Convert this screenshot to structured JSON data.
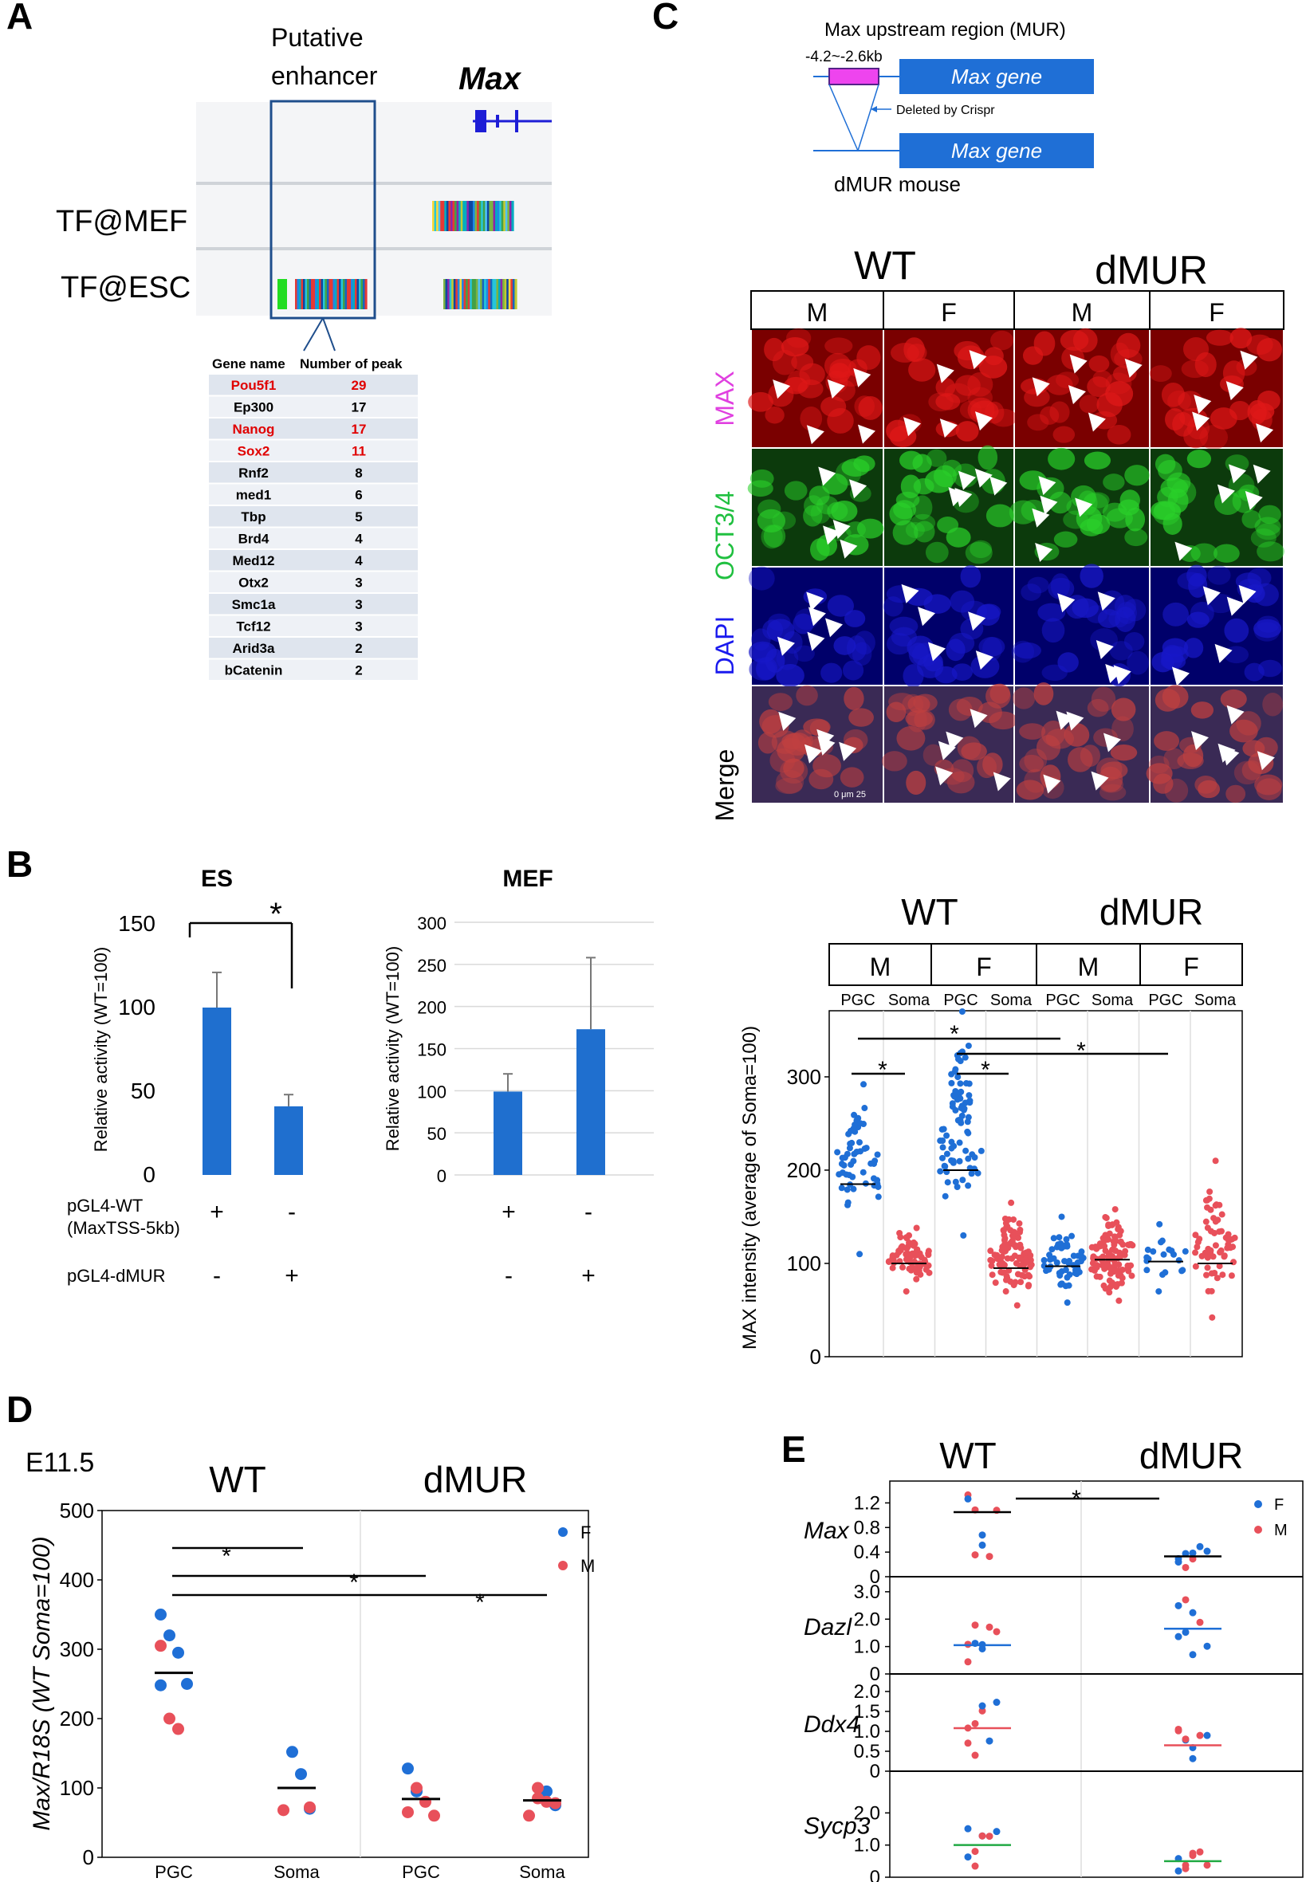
{
  "panels": {
    "A": {
      "letter": "A",
      "enhancer_label_line1": "Putative",
      "enhancer_label_line2": "enhancer",
      "gene_label": "Max",
      "track_labels": [
        "TF@MEF",
        "TF@ESC"
      ],
      "table_headers": [
        "Gene name",
        "Number of peak"
      ],
      "table_rows": [
        {
          "gene": "Pou5f1",
          "peaks": "29",
          "highlight": true
        },
        {
          "gene": "Ep300",
          "peaks": "17",
          "highlight": false
        },
        {
          "gene": "Nanog",
          "peaks": "17",
          "highlight": true
        },
        {
          "gene": "Sox2",
          "peaks": "11",
          "highlight": true
        },
        {
          "gene": "Rnf2",
          "peaks": "8",
          "highlight": false
        },
        {
          "gene": "med1",
          "peaks": "6",
          "highlight": false
        },
        {
          "gene": "Tbp",
          "peaks": "5",
          "highlight": false
        },
        {
          "gene": "Brd4",
          "peaks": "4",
          "highlight": false
        },
        {
          "gene": "Med12",
          "peaks": "4",
          "highlight": false
        },
        {
          "gene": "Otx2",
          "peaks": "3",
          "highlight": false
        },
        {
          "gene": "Smc1a",
          "peaks": "3",
          "highlight": false
        },
        {
          "gene": "Tcf12",
          "peaks": "3",
          "highlight": false
        },
        {
          "gene": "Arid3a",
          "peaks": "2",
          "highlight": false
        },
        {
          "gene": "bCatenin",
          "peaks": "2",
          "highlight": false
        }
      ],
      "highlight_color": "#e00000"
    },
    "B": {
      "letter": "B",
      "charts_titles": [
        "ES",
        "MEF"
      ],
      "ylabel": "Relative activity (WT=100)",
      "row_labels": [
        "pGL4-WT",
        "(MaxTSS-5kb)",
        "pGL4-dMUR"
      ],
      "signs_es": [
        [
          "+",
          "-"
        ],
        [
          "-",
          "+"
        ]
      ],
      "signs_mef": [
        [
          "+",
          "-"
        ],
        [
          "-",
          "+"
        ]
      ],
      "sig_mark": "*",
      "bar_color": "#1f6fcf"
    },
    "C": {
      "letter": "C",
      "diagram_title": "Max upstream region (MUR)",
      "region_range": "-4.2~-2.6kb",
      "gene_box_label": "Max   gene",
      "deleted_label": "Deleted by Crispr",
      "mouse_label": "dMUR mouse",
      "group_labels": [
        "WT",
        "dMUR"
      ],
      "sex_labels": [
        "M",
        "F",
        "M",
        "F"
      ],
      "channel_labels": [
        "MAX",
        "OCT3/4",
        "DAPI",
        "Merge"
      ],
      "channel_colors": [
        "#e040e0",
        "#20c040",
        "#1a1aee",
        "#000000"
      ],
      "scale_text": "0    μm    25"
    },
    "C2": {
      "group_labels": [
        "WT",
        "dMUR"
      ],
      "sex_labels": [
        "M",
        "F",
        "M",
        "F"
      ],
      "cell_labels": [
        "PGC",
        "Soma",
        "PGC",
        "Soma",
        "PGC",
        "Soma",
        "PGC",
        "Soma"
      ],
      "ylabel": "MAX intensity (average of Soma=100)",
      "sig_mark": "*"
    },
    "D": {
      "letter": "D",
      "stage": "E11.5",
      "group_labels": [
        "WT",
        "dMUR"
      ],
      "ylabel": "Max/R18S (WT Soma=100)",
      "legend": [
        "F",
        "M"
      ],
      "sig_mark": "*"
    },
    "E": {
      "letter": "E",
      "group_labels": [
        "WT",
        "dMUR"
      ],
      "legend": [
        "F",
        "M"
      ],
      "gene_labels": [
        "Max",
        "Dazl",
        "Ddx4",
        "Sycp3"
      ],
      "sig_mark": "*"
    }
  },
  "colors": {
    "blue": "#1f6fd6",
    "red": "#e8505a",
    "line_blue": "#1f6fd6",
    "line_red": "#e8505a",
    "line_green": "#22aa44"
  },
  "chart_data": [
    {
      "type": "bar",
      "title": "ES",
      "categories": [
        "pGL4-WT (MaxTSS-5kb)",
        "pGL4-dMUR"
      ],
      "values": [
        100,
        41
      ],
      "errors": [
        21,
        7
      ],
      "ylabel": "Relative activity (WT=100)",
      "ylim": [
        0,
        150
      ],
      "yticks": [
        "0",
        "50",
        "100",
        "150"
      ]
    },
    {
      "type": "bar",
      "title": "MEF",
      "categories": [
        "pGL4-WT (MaxTSS-5kb)",
        "pGL4-dMUR"
      ],
      "values": [
        99,
        173
      ],
      "errors": [
        21,
        85
      ],
      "ylabel": "Relative activity (WT=100)",
      "ylim": [
        0,
        300
      ],
      "yticks": [
        "0",
        "50",
        "100",
        "150",
        "200",
        "250",
        "300"
      ]
    },
    {
      "type": "scatter",
      "ylabel": "MAX intensity (average of Soma=100)",
      "ylim": [
        0,
        370
      ],
      "yticks": [
        "0",
        "100",
        "200",
        "300"
      ],
      "groups": [
        {
          "group": "WT M PGC",
          "mean": 185,
          "min": 110,
          "max": 292,
          "n": 55,
          "color": "blue"
        },
        {
          "group": "WT M Soma",
          "mean": 100,
          "min": 70,
          "max": 138,
          "n": 70,
          "color": "red"
        },
        {
          "group": "WT F PGC",
          "mean": 200,
          "min": 130,
          "max": 370,
          "n": 80,
          "color": "blue"
        },
        {
          "group": "WT F Soma",
          "mean": 95,
          "min": 55,
          "max": 165,
          "n": 100,
          "color": "red"
        },
        {
          "group": "dMUR M PGC",
          "mean": 97,
          "min": 58,
          "max": 150,
          "n": 55,
          "color": "blue"
        },
        {
          "group": "dMUR M Soma",
          "mean": 104,
          "min": 60,
          "max": 158,
          "n": 110,
          "color": "red"
        },
        {
          "group": "dMUR F PGC",
          "mean": 102,
          "min": 70,
          "max": 142,
          "n": 20,
          "color": "blue"
        },
        {
          "group": "dMUR F Soma",
          "mean": 100,
          "min": 42,
          "max": 210,
          "n": 60,
          "color": "red"
        }
      ]
    },
    {
      "type": "scatter",
      "title": "E11.5",
      "categories": [
        "PGC",
        "Soma",
        "PGC",
        "Soma"
      ],
      "ylabel": "Max/R18S (WT Soma=100)",
      "ylim": [
        0,
        500
      ],
      "yticks": [
        "0",
        "100",
        "200",
        "300",
        "400",
        "500"
      ],
      "series": [
        {
          "name": "F",
          "points": [
            [
              0,
              350
            ],
            [
              0,
              320
            ],
            [
              0,
              295
            ],
            [
              0,
              250
            ],
            [
              0,
              248
            ],
            [
              1,
              152
            ],
            [
              1,
              120
            ],
            [
              1,
              70
            ],
            [
              2,
              128
            ],
            [
              2,
              95
            ],
            [
              3,
              95
            ],
            [
              3,
              75
            ]
          ]
        },
        {
          "name": "M",
          "points": [
            [
              0,
              305
            ],
            [
              0,
              200
            ],
            [
              0,
              185
            ],
            [
              1,
              72
            ],
            [
              1,
              68
            ],
            [
              2,
              100
            ],
            [
              2,
              80
            ],
            [
              2,
              60
            ],
            [
              2,
              65
            ],
            [
              3,
              100
            ],
            [
              3,
              80
            ],
            [
              3,
              78
            ],
            [
              3,
              60
            ],
            [
              3,
              85
            ]
          ]
        }
      ],
      "means": [
        266,
        100,
        84,
        82
      ]
    },
    {
      "type": "scatter",
      "categories": [
        "WT",
        "dMUR"
      ],
      "legend": [
        "F",
        "M"
      ],
      "subplots": [
        {
          "gene": "Max",
          "ylim": [
            0,
            1.4
          ],
          "yticks": [
            "0",
            "0.4",
            "0.8",
            "1.2"
          ],
          "means": [
            1.05,
            0.33
          ],
          "mean_color": "black"
        },
        {
          "gene": "Dazl",
          "ylim": [
            0,
            3.2
          ],
          "yticks": [
            "0",
            "1.0",
            "2.0",
            "3.0"
          ],
          "means": [
            1.05,
            1.65
          ],
          "mean_color": "blue"
        },
        {
          "gene": "Ddx4",
          "ylim": [
            0,
            2.2
          ],
          "yticks": [
            "0",
            "0.5",
            "1.0",
            "1.5",
            "2.0"
          ],
          "means": [
            1.08,
            0.65
          ],
          "mean_color": "red"
        },
        {
          "gene": "Sycp3",
          "ylim": [
            0,
            3.0
          ],
          "yticks": [
            "0",
            "1.0",
            "2.0"
          ],
          "means": [
            1.0,
            0.5
          ],
          "mean_color": "green"
        }
      ]
    }
  ]
}
